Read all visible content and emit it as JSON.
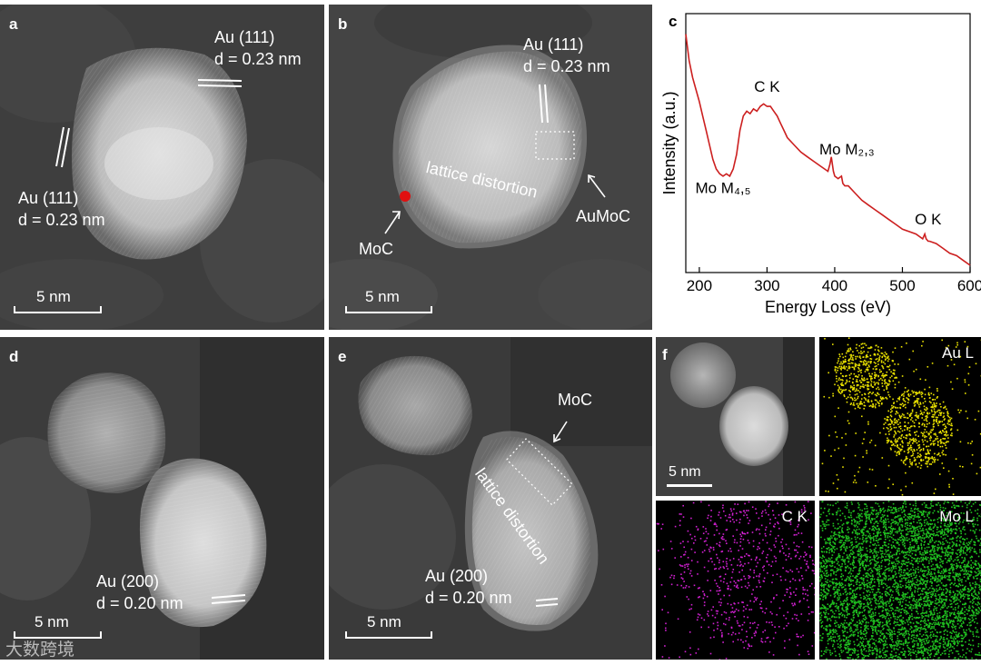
{
  "panels": {
    "a": {
      "label": "a",
      "annotations": [
        "Au (111)",
        "d = 0.23 nm",
        "Au (111)",
        "d = 0.23 nm"
      ],
      "scalebar": "5 nm"
    },
    "b": {
      "label": "b",
      "annotations": [
        "Au (111)",
        "d = 0.23 nm",
        "lattice distortion",
        "MoC",
        "AuMoC"
      ],
      "scalebar": "5 nm"
    },
    "c": {
      "label": "c"
    },
    "d": {
      "label": "d",
      "annotations": [
        "Au (200)",
        "d = 0.20 nm"
      ],
      "scalebar": "5 nm"
    },
    "e": {
      "label": "e",
      "annotations": [
        "MoC",
        "lattice distortion",
        "Au (200)",
        "d = 0.20 nm"
      ],
      "scalebar": "5 nm"
    },
    "f": {
      "label": "f",
      "scalebar": "5 nm",
      "maps": [
        "Au L",
        "C K",
        "Mo L"
      ],
      "map_colors": [
        "#e8e000",
        "#d020d0",
        "#20c020"
      ]
    }
  },
  "watermark": "大数跨境",
  "chart_data": {
    "type": "line",
    "xlabel": "Energy Loss (eV)",
    "ylabel": "Intensity (a.u.)",
    "xlim": [
      180,
      600
    ],
    "xticks": [
      200,
      300,
      400,
      500,
      600
    ],
    "line_color": "#cc1f1f",
    "x": [
      180,
      185,
      190,
      195,
      200,
      205,
      210,
      215,
      220,
      225,
      230,
      235,
      240,
      245,
      250,
      255,
      260,
      265,
      270,
      275,
      280,
      285,
      290,
      295,
      300,
      305,
      310,
      315,
      320,
      325,
      330,
      340,
      350,
      360,
      370,
      380,
      385,
      390,
      393,
      395,
      398,
      400,
      405,
      410,
      412,
      415,
      420,
      430,
      440,
      450,
      460,
      470,
      480,
      490,
      500,
      510,
      520,
      530,
      533,
      535,
      538,
      540,
      550,
      560,
      570,
      580,
      590,
      600
    ],
    "y": [
      0.96,
      0.85,
      0.78,
      0.73,
      0.68,
      0.62,
      0.56,
      0.5,
      0.44,
      0.4,
      0.38,
      0.37,
      0.38,
      0.37,
      0.4,
      0.46,
      0.56,
      0.62,
      0.64,
      0.63,
      0.65,
      0.64,
      0.66,
      0.67,
      0.66,
      0.66,
      0.64,
      0.62,
      0.59,
      0.56,
      0.53,
      0.5,
      0.47,
      0.45,
      0.43,
      0.41,
      0.4,
      0.39,
      0.42,
      0.45,
      0.39,
      0.37,
      0.36,
      0.37,
      0.34,
      0.33,
      0.33,
      0.3,
      0.27,
      0.25,
      0.23,
      0.21,
      0.19,
      0.17,
      0.15,
      0.14,
      0.13,
      0.11,
      0.13,
      0.11,
      0.1,
      0.1,
      0.09,
      0.07,
      0.05,
      0.04,
      0.02,
      0.0
    ],
    "annotations": [
      {
        "text": "C K",
        "x": 300,
        "y": 0.72
      },
      {
        "text": "Mo M₂,₃",
        "x": 418,
        "y": 0.46
      },
      {
        "text": "Mo M₄,₅",
        "x": 235,
        "y": 0.3
      },
      {
        "text": "O K",
        "x": 538,
        "y": 0.17
      }
    ]
  }
}
